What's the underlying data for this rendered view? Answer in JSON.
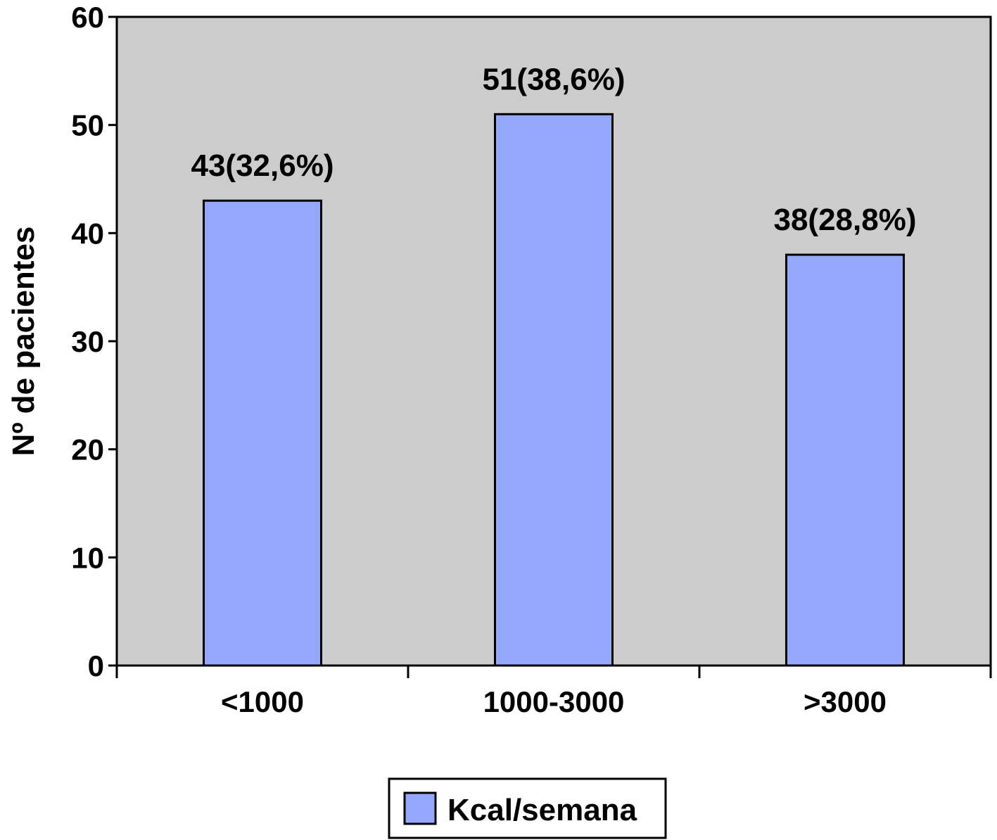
{
  "chart_data": {
    "type": "bar",
    "categories": [
      "<1000",
      "1000-3000",
      ">3000"
    ],
    "series": [
      {
        "name": "Kcal/semana",
        "values": [
          43,
          51,
          38
        ],
        "data_labels": [
          "43(32,6%)",
          "51(38,6%)",
          "38(28,8%)"
        ]
      }
    ],
    "xlabel": "",
    "ylabel": "Nº de pacientes",
    "ylim": [
      0,
      60
    ],
    "yticks": [
      0,
      10,
      20,
      30,
      40,
      50,
      60
    ],
    "grid": false,
    "legend": "bottom"
  },
  "colors": {
    "plot_background": "#cccccc",
    "bar_fill": "#94a8fb",
    "outline": "#000000"
  }
}
